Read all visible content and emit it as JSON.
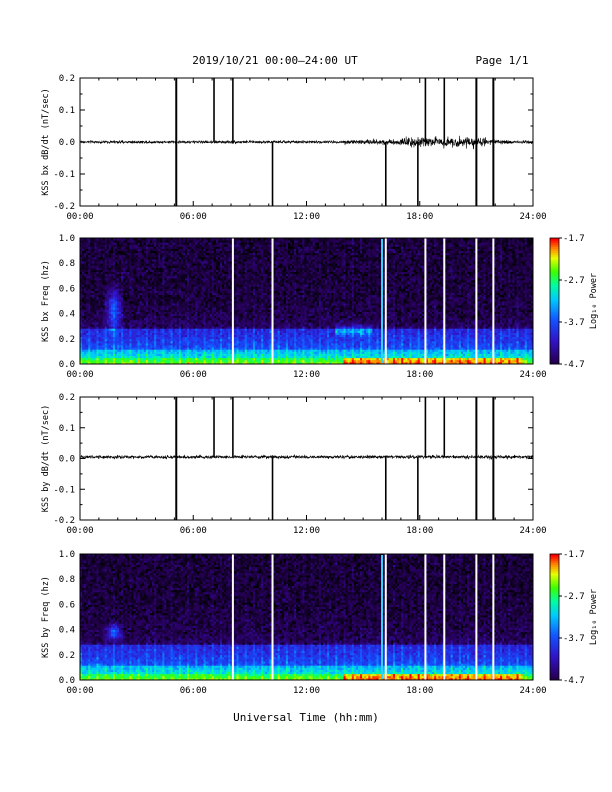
{
  "header": {
    "title": "2019/10/21  00:00–24:00 UT",
    "page": "Page 1/1"
  },
  "footer": {
    "xlabel": "Universal Time (hh:mm)"
  },
  "colors": {
    "colorbar": [
      "#000000",
      "#3a0080",
      "#2000ff",
      "#00a0ff",
      "#00ffff",
      "#00ff40",
      "#c0ff00",
      "#ffff00",
      "#ff8000",
      "#ff0000"
    ]
  },
  "chart_data": [
    {
      "type": "line",
      "ylabel": "KSS bx dB/dt (nT/sec)",
      "xlim": [
        "00:00",
        "24:00"
      ],
      "ylim": [
        -0.2,
        0.2
      ],
      "xticks": [
        "00:00",
        "06:00",
        "12:00",
        "18:00",
        "24:00"
      ],
      "yticks": [
        "-0.2",
        "-0.1",
        "0.0",
        "0.1",
        "0.2"
      ],
      "baseline": 0.0,
      "noise_amplitude": [
        {
          "from_hour": 0,
          "to_hour": 14,
          "amp": 0.004
        },
        {
          "from_hour": 14,
          "to_hour": 17,
          "amp": 0.008
        },
        {
          "from_hour": 17,
          "to_hour": 21.5,
          "amp": 0.015
        },
        {
          "from_hour": 21.5,
          "to_hour": 24,
          "amp": 0.006
        }
      ],
      "spikes_full_hours": [
        5.1,
        21.0,
        21.9
      ],
      "spikes_up_hours": [
        7.1,
        8.1,
        18.3,
        19.3
      ],
      "spikes_down_hours": [
        10.2,
        16.2,
        17.9
      ]
    },
    {
      "type": "heatmap",
      "ylabel": "KSS bx Freq (hz)",
      "xlim": [
        "00:00",
        "24:00"
      ],
      "ylim": [
        0.0,
        1.0
      ],
      "xticks": [
        "00:00",
        "06:00",
        "12:00",
        "18:00",
        "24:00"
      ],
      "yticks": [
        "0.0",
        "0.2",
        "0.4",
        "0.6",
        "0.8",
        "1.0"
      ],
      "colorbar_label": "Log₁₀ Power",
      "colorbar_ticks": [
        "-1.7",
        "-2.7",
        "-3.7",
        "-4.7"
      ],
      "colorbar_range": [
        -4.7,
        -1.7
      ],
      "gaps_hours": [
        8.1,
        10.2,
        16.2,
        18.3,
        19.3,
        21.0,
        21.9
      ],
      "bright_line_hour": 16.0,
      "features": "broadband noise below 0.25 Hz; Pc1 burst near 01:30-02:00 up to 0.6 Hz; enhanced power 14-17 UT near 0.3 Hz; intense power below 0.05 Hz after 14 UT"
    },
    {
      "type": "line",
      "ylabel": "KSS by dB/dt (nT/sec)",
      "xlim": [
        "00:00",
        "24:00"
      ],
      "ylim": [
        -0.2,
        0.2
      ],
      "xticks": [
        "00:00",
        "06:00",
        "12:00",
        "18:00",
        "24:00"
      ],
      "yticks": [
        "-0.2",
        "-0.1",
        "0.0",
        "0.1",
        "0.2"
      ],
      "baseline": 0.005,
      "noise_amplitude": [
        {
          "from_hour": 0,
          "to_hour": 24,
          "amp": 0.005
        }
      ],
      "spikes_full_hours": [
        5.1,
        21.0,
        21.9
      ],
      "spikes_up_hours": [
        7.1,
        8.1,
        18.3,
        19.3
      ],
      "spikes_down_hours": [
        10.2,
        16.2,
        17.9
      ]
    },
    {
      "type": "heatmap",
      "ylabel": "KSS by Freq (hz)",
      "xlim": [
        "00:00",
        "24:00"
      ],
      "ylim": [
        0.0,
        1.0
      ],
      "xticks": [
        "00:00",
        "06:00",
        "12:00",
        "18:00",
        "24:00"
      ],
      "yticks": [
        "0.0",
        "0.2",
        "0.4",
        "0.6",
        "0.8",
        "1.0"
      ],
      "colorbar_label": "Log₁₀ Power",
      "colorbar_ticks": [
        "-1.7",
        "-2.7",
        "-3.7",
        "-4.7"
      ],
      "colorbar_range": [
        -4.7,
        -1.7
      ],
      "gaps_hours": [
        8.1,
        10.2,
        16.2,
        18.3,
        19.3,
        21.0,
        21.9
      ],
      "bright_line_hour": 16.0,
      "features": "broadband noise below 0.3 Hz; Pc1 burst near 02:00 around 0.4 Hz; intense power below 0.05 Hz after 14 UT"
    }
  ]
}
